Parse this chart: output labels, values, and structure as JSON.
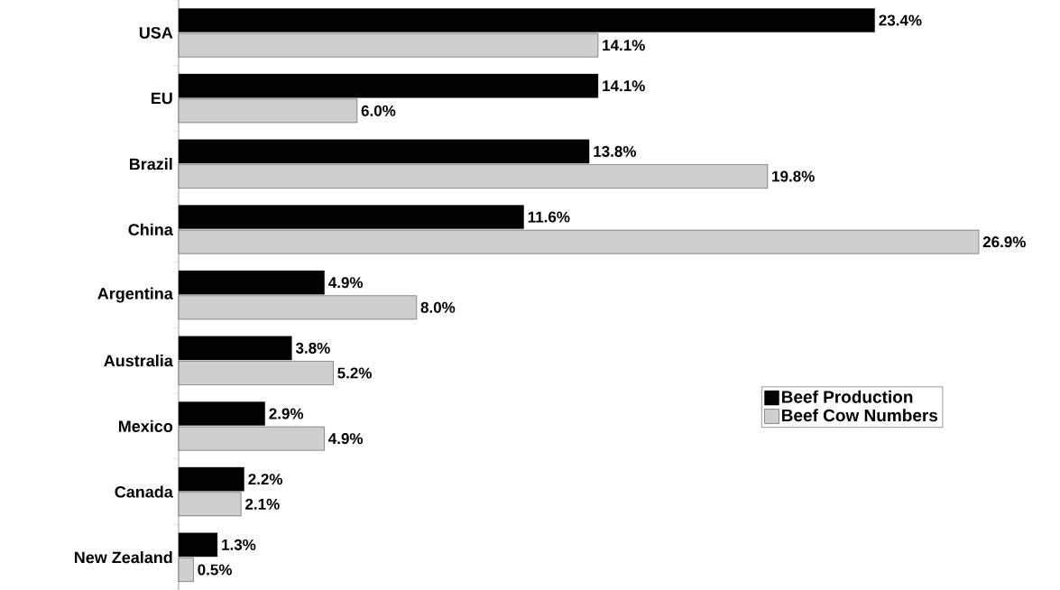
{
  "chart_data": {
    "type": "bar",
    "orientation": "horizontal",
    "legend": "right",
    "categories": [
      "USA",
      "EU",
      "Brazil",
      "China",
      "Argentina",
      "Australia",
      "Mexico",
      "Canada",
      "New Zealand"
    ],
    "series": [
      {
        "name": "Beef Production",
        "color": "#000000",
        "values": [
          23.4,
          14.1,
          13.8,
          11.6,
          4.9,
          3.8,
          2.9,
          2.2,
          1.3
        ],
        "value_labels": [
          "23.4%",
          "14.1%",
          "13.8%",
          "11.6%",
          "4.9%",
          "3.8%",
          "2.9%",
          "2.2%",
          "1.3%"
        ]
      },
      {
        "name": "Beef Cow Numbers",
        "color": "#cfcfcf",
        "values": [
          14.1,
          6.0,
          19.8,
          26.9,
          8.0,
          5.2,
          4.9,
          2.1,
          0.5
        ],
        "value_labels": [
          "14.1%",
          "6.0%",
          "19.8%",
          "26.9%",
          "8.0%",
          "5.2%",
          "4.9%",
          "2.1%",
          "0.5%"
        ]
      }
    ]
  }
}
